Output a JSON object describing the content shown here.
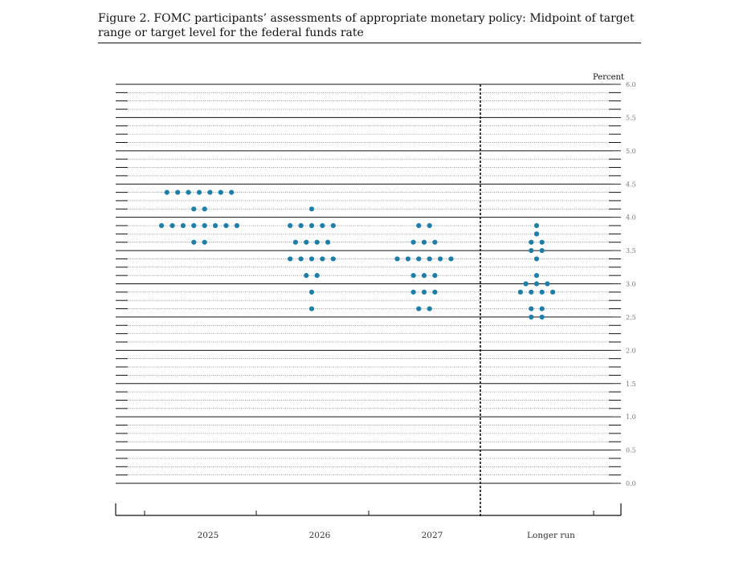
{
  "figure": {
    "title": "Figure 2.  FOMC participants’ assessments of appropriate monetary policy: Midpoint of target range or target level for the federal funds rate"
  },
  "chart_data": {
    "type": "scatter",
    "title": "Figure 2.  FOMC participants’ assessments of appropriate monetary policy: Midpoint of target range or target level for the federal funds rate",
    "ylabel": "Percent",
    "ylim": [
      0.0,
      6.0
    ],
    "yticks": [
      "0.0",
      "0.5",
      "1.0",
      "1.5",
      "2.0",
      "2.5",
      "3.0",
      "3.5",
      "4.0",
      "4.5",
      "5.0",
      "5.5",
      "6.0"
    ],
    "categories": [
      "2025",
      "2026",
      "2027",
      "Longer run"
    ],
    "grid": true,
    "dot_color": "#1f7ea8",
    "dots": [
      {
        "category": "2025",
        "rates": [
          {
            "value": 4.375,
            "count": 7
          },
          {
            "value": 4.125,
            "count": 2
          },
          {
            "value": 3.875,
            "count": 8
          },
          {
            "value": 3.625,
            "count": 2
          }
        ]
      },
      {
        "category": "2026",
        "rates": [
          {
            "value": 4.125,
            "count": 1
          },
          {
            "value": 3.875,
            "count": 5
          },
          {
            "value": 3.625,
            "count": 4
          },
          {
            "value": 3.375,
            "count": 5
          },
          {
            "value": 3.125,
            "count": 2
          },
          {
            "value": 2.875,
            "count": 1
          },
          {
            "value": 2.625,
            "count": 1
          }
        ]
      },
      {
        "category": "2027",
        "rates": [
          {
            "value": 3.875,
            "count": 2
          },
          {
            "value": 3.625,
            "count": 3
          },
          {
            "value": 3.375,
            "count": 6
          },
          {
            "value": 3.125,
            "count": 3
          },
          {
            "value": 2.875,
            "count": 3
          },
          {
            "value": 2.625,
            "count": 2
          }
        ]
      },
      {
        "category": "Longer run",
        "rates": [
          {
            "value": 3.875,
            "count": 1
          },
          {
            "value": 3.75,
            "count": 1
          },
          {
            "value": 3.625,
            "count": 2
          },
          {
            "value": 3.5,
            "count": 2
          },
          {
            "value": 3.375,
            "count": 1
          },
          {
            "value": 3.125,
            "count": 1
          },
          {
            "value": 3.0,
            "count": 3
          },
          {
            "value": 2.875,
            "count": 4
          },
          {
            "value": 2.625,
            "count": 2
          },
          {
            "value": 2.5,
            "count": 2
          }
        ]
      }
    ]
  }
}
